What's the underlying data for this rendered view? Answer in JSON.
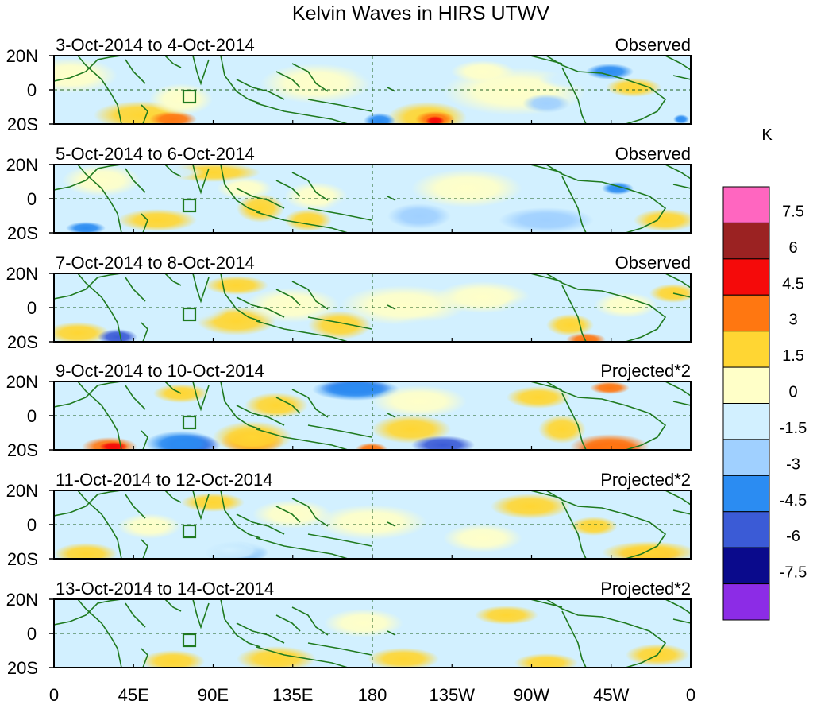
{
  "title": "Kelvin Waves in HIRS UTWV",
  "panels": [
    {
      "date_range": "3-Oct-2014 to 4-Oct-2014",
      "type": "Observed"
    },
    {
      "date_range": "5-Oct-2014 to 6-Oct-2014",
      "type": "Observed"
    },
    {
      "date_range": "7-Oct-2014 to 8-Oct-2014",
      "type": "Observed"
    },
    {
      "date_range": "9-Oct-2014 to 10-Oct-2014",
      "type": "Projected*2"
    },
    {
      "date_range": "11-Oct-2014 to 12-Oct-2014",
      "type": "Projected*2"
    },
    {
      "date_range": "13-Oct-2014 to 14-Oct-2014",
      "type": "Projected*2"
    }
  ],
  "lat_labels": [
    "20N",
    "0",
    "20S"
  ],
  "lon_labels": [
    "0",
    "45E",
    "90E",
    "135E",
    "180",
    "135W",
    "90W",
    "45W",
    "0"
  ],
  "colorbar": {
    "unit": "K",
    "levels": [
      "7.5",
      "6",
      "4.5",
      "3",
      "1.5",
      "0",
      "-1.5",
      "-3",
      "-4.5",
      "-6",
      "-7.5"
    ],
    "colors": [
      "#ff66c0",
      "#9b2222",
      "#f50a0a",
      "#ff7711",
      "#ffd633",
      "#ffffc8",
      "#d2f0ff",
      "#a0d0ff",
      "#2b8cf2",
      "#3b5bd6",
      "#0a0a8c",
      "#8c2ce6"
    ]
  }
}
